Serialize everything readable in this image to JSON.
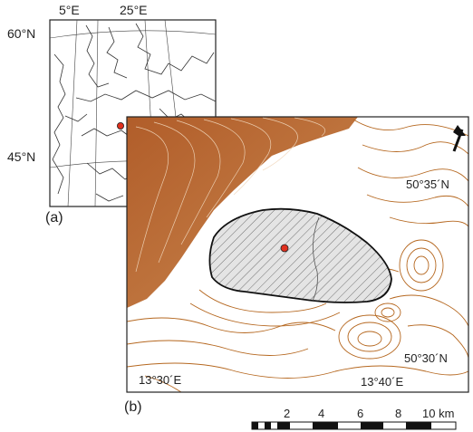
{
  "inset": {
    "lon_labels": [
      "5°E",
      "25°E"
    ],
    "lat_labels": [
      "60°N",
      "45°N"
    ],
    "panel_label": "(a)",
    "marker_color": "#e0301e"
  },
  "main": {
    "panel_label": "(b)",
    "lat_labels": [
      "50°35´N",
      "50°30´N"
    ],
    "lon_labels": [
      "13°30´E",
      "13°40´E"
    ],
    "marker_color": "#e0301e",
    "contour_color": "#b5671f",
    "relief_color": "#a14a12",
    "north_arrow": "north-arrow"
  },
  "scale_bar": {
    "ticks": [
      "2",
      "4",
      "6",
      "8",
      "10 km"
    ]
  }
}
